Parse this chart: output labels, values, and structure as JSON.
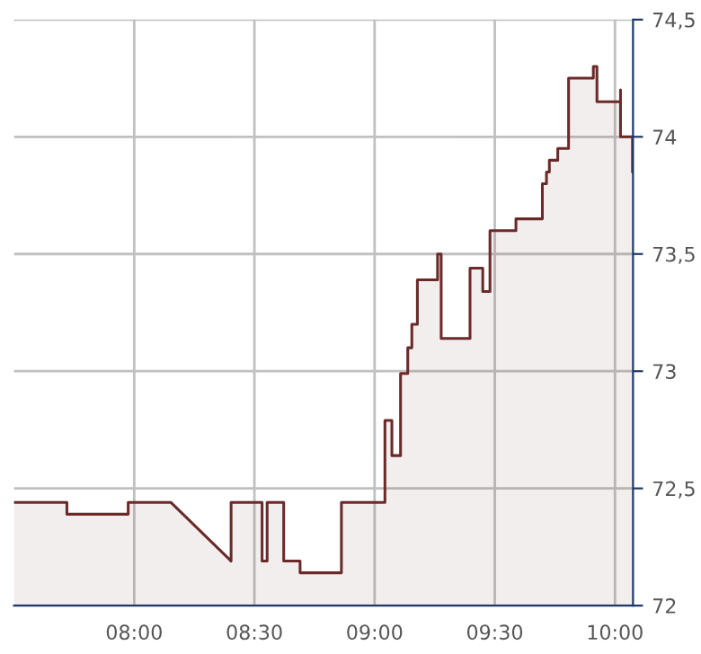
{
  "chart_data": {
    "type": "area",
    "x": [
      7.5,
      7.72,
      7.72,
      7.975,
      7.975,
      8.153,
      8.403,
      8.403,
      8.532,
      8.532,
      8.553,
      8.553,
      8.622,
      8.622,
      8.69,
      8.69,
      8.862,
      8.862,
      9.043,
      9.043,
      9.072,
      9.072,
      9.108,
      9.108,
      9.138,
      9.138,
      9.155,
      9.155,
      9.178,
      9.178,
      9.262,
      9.262,
      9.277,
      9.277,
      9.397,
      9.397,
      9.45,
      9.45,
      9.48,
      9.48,
      9.588,
      9.588,
      9.698,
      9.698,
      9.715,
      9.715,
      9.727,
      9.727,
      9.762,
      9.762,
      9.807,
      9.807,
      9.91,
      9.91,
      9.925,
      9.925,
      10.023,
      10.023,
      10.023,
      10.073,
      10.073
    ],
    "series": [
      {
        "color": "#6b2a2a",
        "values": [
          72.44,
          72.44,
          72.39,
          72.39,
          72.44,
          72.44,
          72.19,
          72.44,
          72.44,
          72.19,
          72.19,
          72.44,
          72.44,
          72.19,
          72.19,
          72.14,
          72.14,
          72.44,
          72.44,
          72.79,
          72.79,
          72.64,
          72.64,
          72.99,
          72.99,
          73.1,
          73.1,
          73.2,
          73.2,
          73.39,
          73.39,
          73.5,
          73.5,
          73.14,
          73.14,
          73.44,
          73.44,
          73.34,
          73.34,
          73.6,
          73.6,
          73.65,
          73.65,
          73.8,
          73.8,
          73.85,
          73.85,
          73.9,
          73.9,
          73.95,
          73.95,
          74.25,
          74.25,
          74.3,
          74.3,
          74.15,
          74.15,
          74.2,
          74.0,
          74.0,
          73.85
        ]
      }
    ],
    "xlim": [
      7.5,
      10.075
    ],
    "xticks": [
      {
        "value": 8,
        "label": "08:00"
      },
      {
        "value": 8.5,
        "label": "08:30"
      },
      {
        "value": 9,
        "label": "09:00"
      },
      {
        "value": 9.5,
        "label": "09:30"
      },
      {
        "value": 10,
        "label": "10:00"
      }
    ],
    "ylim": [
      72,
      74.5
    ],
    "yticks": [
      {
        "value": 72,
        "label": "72"
      },
      {
        "value": 72.5,
        "label": "72,5"
      },
      {
        "value": 73,
        "label": "73"
      },
      {
        "value": 73.5,
        "label": "73,5"
      },
      {
        "value": 74,
        "label": "74"
      },
      {
        "value": 74.5,
        "label": "74,5"
      }
    ],
    "grid": true,
    "legend": false,
    "marker": "none",
    "line_style": "solid"
  }
}
